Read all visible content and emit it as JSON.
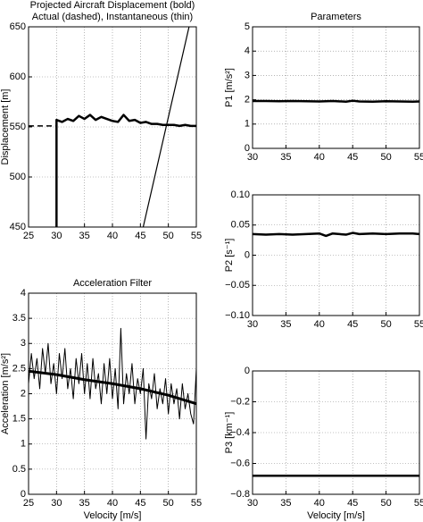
{
  "chart_data": [
    {
      "type": "line",
      "title": "Projected Aircraft Displacement (bold)",
      "subtitle": "Actual (dashed),  Instantaneous (thin)",
      "y_label": "Displacement [m]",
      "xlim": [
        25,
        55
      ],
      "xticks": [
        25,
        30,
        35,
        40,
        45,
        50,
        55
      ],
      "ylim": [
        450,
        650
      ],
      "yticks": [
        450,
        500,
        550,
        600,
        650
      ],
      "grid": true,
      "series": [
        {
          "color": "#000000",
          "width": 2.5,
          "dash": "none",
          "x": [
            30,
            30,
            31,
            32,
            33,
            34,
            35,
            36,
            37,
            38,
            39,
            40,
            41,
            42,
            43,
            44,
            45,
            46,
            47,
            48,
            49,
            50,
            51,
            52,
            53,
            54,
            55
          ],
          "values": [
            450,
            557,
            555,
            558,
            556,
            561,
            558,
            562,
            557,
            560,
            558,
            556,
            555,
            562,
            556,
            557,
            554,
            555,
            553,
            553,
            552,
            552,
            552,
            551,
            552,
            551,
            551
          ]
        },
        {
          "color": "#000000",
          "width": 1.5,
          "dash": "6 4",
          "x": [
            25,
            30
          ],
          "values": [
            551,
            551
          ]
        },
        {
          "color": "#000000",
          "width": 1.2,
          "dash": "none",
          "x": [
            45.5,
            53.7
          ],
          "values": [
            450,
            650
          ]
        }
      ]
    },
    {
      "type": "line",
      "title": "Acceleration Filter",
      "x_label": "Velocity [m/s]",
      "y_label": "Acceleration [m/s²]",
      "xlim": [
        25,
        55
      ],
      "xticks": [
        25,
        30,
        35,
        40,
        45,
        50,
        55
      ],
      "ylim": [
        0,
        4
      ],
      "yticks": [
        0,
        0.5,
        1,
        1.5,
        2,
        2.5,
        3,
        3.5,
        4
      ],
      "grid": true,
      "series": [
        {
          "color": "#000000",
          "width": 1,
          "dash": "none",
          "x": [
            25,
            25.5,
            26,
            26.5,
            27,
            27.5,
            28,
            28.5,
            29,
            29.5,
            30,
            30.5,
            31,
            31.5,
            32,
            32.5,
            33,
            33.5,
            34,
            34.5,
            35,
            35.5,
            36,
            36.5,
            37,
            37.5,
            38,
            38.5,
            39,
            39.5,
            40,
            40.5,
            41,
            41.5,
            42,
            42.5,
            43,
            43.5,
            44,
            44.5,
            45,
            45.5,
            46,
            46.5,
            47,
            47.5,
            48,
            48.5,
            49,
            49.5,
            50,
            50.5,
            51,
            51.5,
            52,
            52.5,
            53,
            53.5,
            54,
            54.5,
            55
          ],
          "values": [
            2.2,
            2.8,
            2.3,
            2.7,
            2.1,
            2.9,
            2.4,
            3.0,
            2.2,
            2.6,
            2.0,
            2.8,
            2.3,
            2.9,
            2.1,
            2.5,
            1.9,
            2.7,
            2.2,
            2.8,
            2.0,
            2.6,
            1.9,
            2.7,
            2.1,
            2.4,
            1.8,
            2.6,
            2.0,
            2.7,
            1.9,
            2.5,
            1.7,
            3.3,
            1.8,
            2.4,
            2.0,
            2.6,
            1.8,
            2.3,
            2.0,
            2.5,
            1.1,
            2.2,
            1.9,
            2.4,
            1.7,
            2.1,
            1.8,
            2.3,
            1.6,
            2.2,
            1.8,
            2.1,
            1.5,
            2.2,
            1.7,
            2.0,
            1.6,
            1.4,
            2.5
          ]
        },
        {
          "color": "#000000",
          "width": 3,
          "dash": "none",
          "x": [
            25,
            30,
            35,
            40,
            45,
            50,
            55
          ],
          "values": [
            2.45,
            2.38,
            2.28,
            2.2,
            2.1,
            1.97,
            1.8
          ]
        }
      ]
    },
    {
      "type": "line",
      "title": "Parameters",
      "y_label": "P1 [m/s²]",
      "xlim": [
        30,
        55
      ],
      "xticks": [
        30,
        35,
        40,
        45,
        50,
        55
      ],
      "ylim": [
        0,
        5
      ],
      "yticks": [
        0,
        1,
        2,
        3,
        4,
        5
      ],
      "grid": true,
      "series": [
        {
          "color": "#000000",
          "width": 2.5,
          "dash": "none",
          "x": [
            30,
            32,
            34,
            36,
            38,
            40,
            42,
            44,
            45,
            46,
            48,
            50,
            52,
            54,
            55
          ],
          "values": [
            1.95,
            1.95,
            1.94,
            1.95,
            1.94,
            1.93,
            1.95,
            1.92,
            1.96,
            1.93,
            1.92,
            1.94,
            1.93,
            1.92,
            1.93
          ]
        }
      ]
    },
    {
      "type": "line",
      "y_label": "P2 [s⁻¹]",
      "xlim": [
        30,
        55
      ],
      "xticks": [
        30,
        35,
        40,
        45,
        50,
        55
      ],
      "ylim": [
        -0.1,
        0.1
      ],
      "yticks": [
        {
          "value": -0.1,
          "label": "−0.10"
        },
        {
          "value": -0.05,
          "label": "−0.05"
        },
        0,
        0.05,
        {
          "value": 0.1,
          "label": "0.10"
        }
      ],
      "grid": true,
      "series": [
        {
          "color": "#000000",
          "width": 2.5,
          "dash": "none",
          "x": [
            30,
            32,
            34,
            36,
            38,
            40,
            41,
            42,
            44,
            45,
            46,
            48,
            50,
            52,
            54,
            55
          ],
          "values": [
            0.035,
            0.034,
            0.035,
            0.034,
            0.035,
            0.036,
            0.032,
            0.036,
            0.034,
            0.037,
            0.035,
            0.036,
            0.035,
            0.036,
            0.036,
            0.035
          ]
        }
      ]
    },
    {
      "type": "line",
      "x_label": "Velocity [m/s]",
      "y_label": "P3 [km⁻¹]",
      "xlim": [
        30,
        55
      ],
      "xticks": [
        30,
        35,
        40,
        45,
        50,
        55
      ],
      "ylim": [
        -0.8,
        0
      ],
      "yticks": [
        {
          "value": -0.8,
          "label": "−0.8"
        },
        {
          "value": -0.6,
          "label": "−0.6"
        },
        {
          "value": -0.4,
          "label": "−0.4"
        },
        {
          "value": -0.2,
          "label": "−0.2"
        },
        0
      ],
      "grid": true,
      "series": [
        {
          "color": "#000000",
          "width": 2.5,
          "dash": "none",
          "x": [
            30,
            35,
            40,
            45,
            50,
            55
          ],
          "values": [
            -0.68,
            -0.68,
            -0.68,
            -0.68,
            -0.68,
            -0.68
          ]
        }
      ]
    }
  ]
}
